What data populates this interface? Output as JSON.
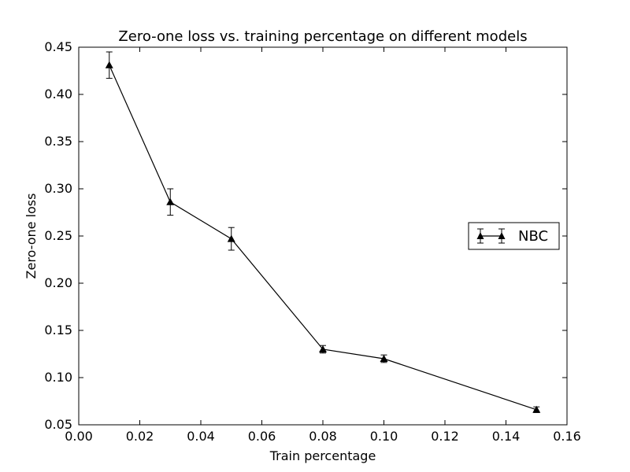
{
  "chart_data": {
    "type": "line",
    "title": "Zero-one loss vs. training percentage on different models",
    "xlabel": "Train percentage",
    "ylabel": "Zero-one loss",
    "xlim": [
      0.0,
      0.16
    ],
    "ylim": [
      0.05,
      0.45
    ],
    "x_ticks": [
      "0.00",
      "0.02",
      "0.04",
      "0.06",
      "0.08",
      "0.10",
      "0.12",
      "0.14",
      "0.16"
    ],
    "y_ticks": [
      "0.05",
      "0.10",
      "0.15",
      "0.20",
      "0.25",
      "0.30",
      "0.35",
      "0.40",
      "0.45"
    ],
    "grid": false,
    "legend_position": "center-right",
    "series": [
      {
        "name": "NBC",
        "color": "#000000",
        "marker": "triangle",
        "x": [
          0.01,
          0.03,
          0.05,
          0.08,
          0.1,
          0.15
        ],
        "y": [
          0.431,
          0.286,
          0.247,
          0.13,
          0.12,
          0.066
        ],
        "error": [
          0.014,
          0.014,
          0.012,
          0.004,
          0.004,
          0.003
        ]
      }
    ]
  }
}
